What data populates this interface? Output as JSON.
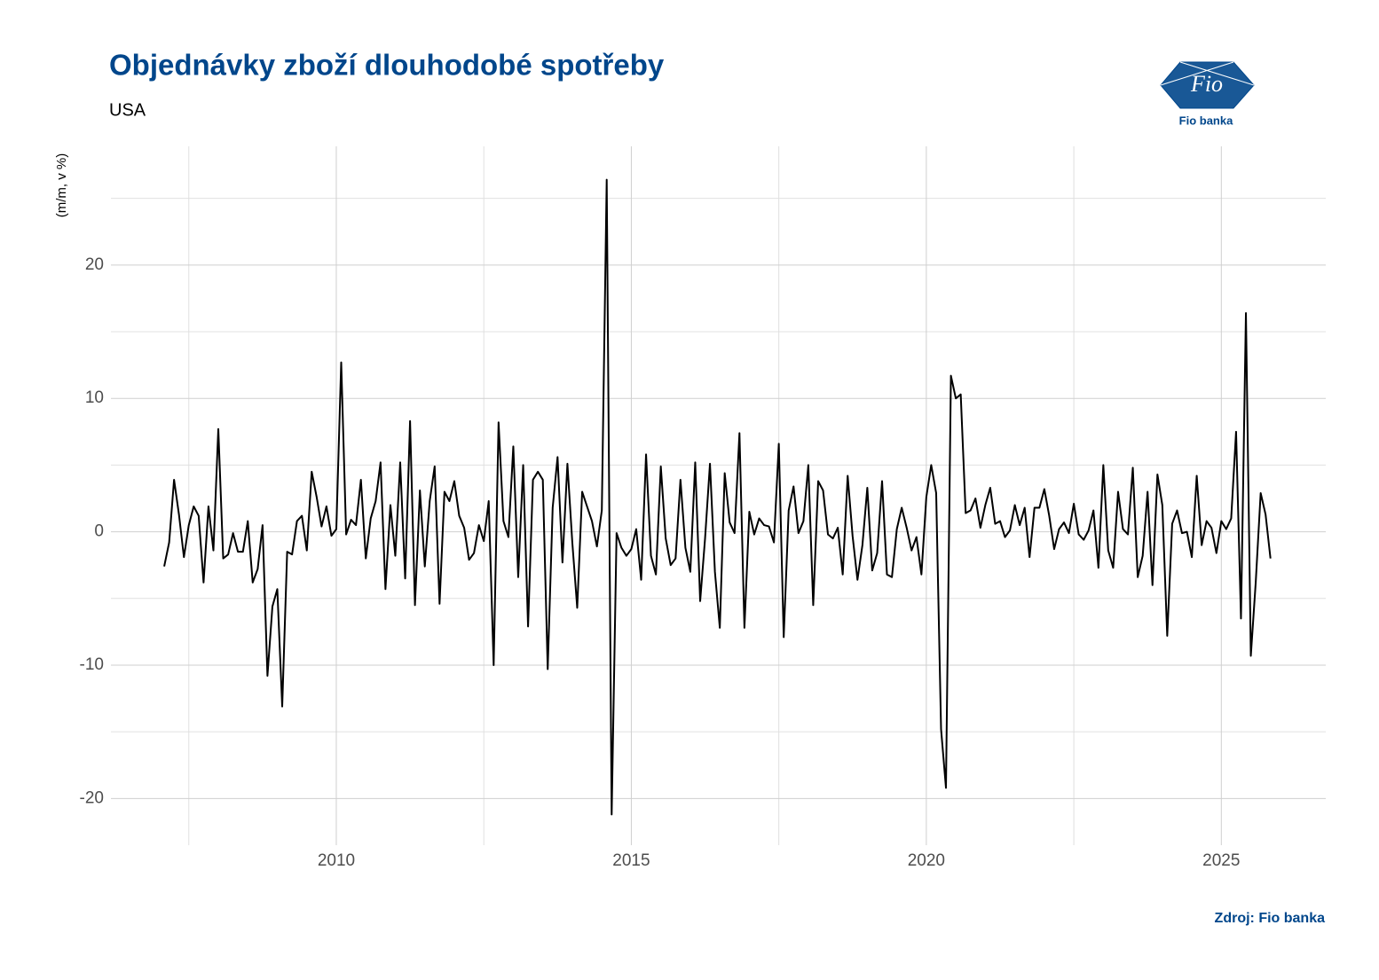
{
  "chart_data": {
    "type": "line",
    "title": "Objednávky zboží dlouhodobé spotřeby",
    "subtitle": "USA",
    "y_label": "(m/m, v %)",
    "source": "Zdroj: Fio banka",
    "logo_text": "Fio",
    "logo_caption": "Fio banka",
    "color": "#000000",
    "grid": true,
    "xlim": [
      2006.18,
      2026.77
    ],
    "xticks": [
      2010,
      2015,
      2020,
      2025
    ],
    "ylim": [
      -23.5,
      28.9
    ],
    "yticks": [
      -20,
      -10,
      0,
      10,
      20
    ],
    "x": [
      2007.083,
      2007.167,
      2007.25,
      2007.333,
      2007.417,
      2007.5,
      2007.583,
      2007.667,
      2007.75,
      2007.833,
      2007.917,
      2008,
      2008.083,
      2008.167,
      2008.25,
      2008.333,
      2008.417,
      2008.5,
      2008.583,
      2008.667,
      2008.75,
      2008.833,
      2008.917,
      2009,
      2009.083,
      2009.167,
      2009.25,
      2009.333,
      2009.417,
      2009.5,
      2009.583,
      2009.667,
      2009.75,
      2009.833,
      2009.917,
      2010,
      2010.083,
      2010.167,
      2010.25,
      2010.333,
      2010.417,
      2010.5,
      2010.583,
      2010.667,
      2010.75,
      2010.833,
      2010.917,
      2011,
      2011.083,
      2011.167,
      2011.25,
      2011.333,
      2011.417,
      2011.5,
      2011.583,
      2011.667,
      2011.75,
      2011.833,
      2011.917,
      2012,
      2012.083,
      2012.167,
      2012.25,
      2012.333,
      2012.417,
      2012.5,
      2012.583,
      2012.667,
      2012.75,
      2012.833,
      2012.917,
      2013,
      2013.083,
      2013.167,
      2013.25,
      2013.333,
      2013.417,
      2013.5,
      2013.583,
      2013.667,
      2013.75,
      2013.833,
      2013.917,
      2014,
      2014.083,
      2014.167,
      2014.25,
      2014.333,
      2014.417,
      2014.5,
      2014.583,
      2014.667,
      2014.75,
      2014.833,
      2014.917,
      2015,
      2015.083,
      2015.167,
      2015.25,
      2015.333,
      2015.417,
      2015.5,
      2015.583,
      2015.667,
      2015.75,
      2015.833,
      2015.917,
      2016,
      2016.083,
      2016.167,
      2016.25,
      2016.333,
      2016.417,
      2016.5,
      2016.583,
      2016.667,
      2016.75,
      2016.833,
      2016.917,
      2017,
      2017.083,
      2017.167,
      2017.25,
      2017.333,
      2017.417,
      2017.5,
      2017.583,
      2017.667,
      2017.75,
      2017.833,
      2017.917,
      2018,
      2018.083,
      2018.167,
      2018.25,
      2018.333,
      2018.417,
      2018.5,
      2018.583,
      2018.667,
      2018.75,
      2018.833,
      2018.917,
      2019,
      2019.083,
      2019.167,
      2019.25,
      2019.333,
      2019.417,
      2019.5,
      2019.583,
      2019.667,
      2019.75,
      2019.833,
      2019.917,
      2020,
      2020.083,
      2020.167,
      2020.25,
      2020.333,
      2020.417,
      2020.5,
      2020.583,
      2020.667,
      2020.75,
      2020.833,
      2020.917,
      2021,
      2021.083,
      2021.167,
      2021.25,
      2021.333,
      2021.417,
      2021.5,
      2021.583,
      2021.667,
      2021.75,
      2021.833,
      2021.917,
      2022,
      2022.083,
      2022.167,
      2022.25,
      2022.333,
      2022.417,
      2022.5,
      2022.583,
      2022.667,
      2022.75,
      2022.833,
      2022.917,
      2023,
      2023.083,
      2023.167,
      2023.25,
      2023.333,
      2023.417,
      2023.5,
      2023.583,
      2023.667,
      2023.75,
      2023.833,
      2023.917,
      2024,
      2024.083,
      2024.167,
      2024.25,
      2024.333,
      2024.417,
      2024.5,
      2024.583,
      2024.667,
      2024.75,
      2024.833,
      2024.917,
      2025,
      2025.083,
      2025.167,
      2025.25,
      2025.333,
      2025.417,
      2025.5,
      2025.583,
      2025.667,
      2025.75,
      2025.833
    ],
    "values": [
      -2.6,
      -0.8,
      3.9,
      1.3,
      -1.9,
      0.5,
      1.9,
      1.2,
      -3.8,
      1.9,
      -1.4,
      7.7,
      -2.0,
      -1.7,
      -0.1,
      -1.5,
      -1.5,
      0.8,
      -3.8,
      -2.8,
      0.5,
      -10.8,
      -5.6,
      -4.3,
      -13.1,
      -1.5,
      -1.7,
      0.8,
      1.2,
      -1.4,
      4.5,
      2.6,
      0.4,
      1.9,
      -0.3,
      0.2,
      12.7,
      -0.2,
      0.9,
      0.5,
      3.9,
      -2.0,
      1.0,
      2.3,
      5.2,
      -4.3,
      2.0,
      -1.8,
      5.2,
      -3.5,
      8.3,
      -5.5,
      3.1,
      -2.6,
      2.3,
      4.9,
      -5.4,
      3.0,
      2.3,
      3.8,
      1.2,
      0.3,
      -2.1,
      -1.6,
      0.5,
      -0.7,
      2.3,
      -10.0,
      8.2,
      0.8,
      -0.4,
      6.4,
      -3.4,
      5.0,
      -7.1,
      3.9,
      4.5,
      3.9,
      -10.3,
      1.8,
      5.6,
      -2.3,
      5.1,
      -0.8,
      -5.7,
      3.0,
      1.9,
      0.8,
      -1.1,
      1.6,
      26.4,
      -21.2,
      -0.1,
      -1.2,
      -1.8,
      -1.3,
      0.2,
      -3.6,
      5.8,
      -1.8,
      -3.2,
      4.9,
      -0.5,
      -2.5,
      -2.0,
      3.9,
      -1.2,
      -3.0,
      5.2,
      -5.2,
      -0.5,
      5.1,
      -3.0,
      -7.2,
      4.4,
      0.7,
      -0.1,
      7.4,
      -7.2,
      1.5,
      -0.2,
      1.0,
      0.5,
      0.4,
      -0.8,
      6.6,
      -7.9,
      1.6,
      3.4,
      -0.1,
      0.8,
      5.0,
      -5.5,
      3.8,
      3.1,
      -0.2,
      -0.5,
      0.3,
      -3.2,
      4.2,
      -0.3,
      -3.6,
      -1.0,
      3.3,
      -2.9,
      -1.6,
      3.8,
      -3.2,
      -3.4,
      0.2,
      1.8,
      0.3,
      -1.4,
      -0.4,
      -3.2,
      2.6,
      5.0,
      2.9,
      -14.8,
      -19.2,
      11.7,
      10.0,
      10.3,
      1.4,
      1.6,
      2.5,
      0.3,
      2.0,
      3.3,
      0.6,
      0.8,
      -0.4,
      0.1,
      2.0,
      0.5,
      1.8,
      -1.9,
      1.8,
      1.8,
      3.2,
      1.2,
      -1.3,
      0.2,
      0.7,
      -0.1,
      2.1,
      -0.2,
      -0.6,
      0.1,
      1.6,
      -2.7,
      5.0,
      -1.4,
      -2.7,
      3.0,
      0.2,
      -0.2,
      4.8,
      -3.4,
      -1.8,
      3.0,
      -4.0,
      4.3,
      2.0,
      -7.8,
      0.6,
      1.6,
      -0.1,
      0.0,
      -1.9,
      4.2,
      -1.0,
      0.8,
      0.3,
      -1.6,
      0.8,
      0.2,
      1.0,
      7.5,
      -6.5,
      16.4,
      -9.3,
      -3.8,
      2.9,
      1.3,
      -2.0
    ]
  }
}
